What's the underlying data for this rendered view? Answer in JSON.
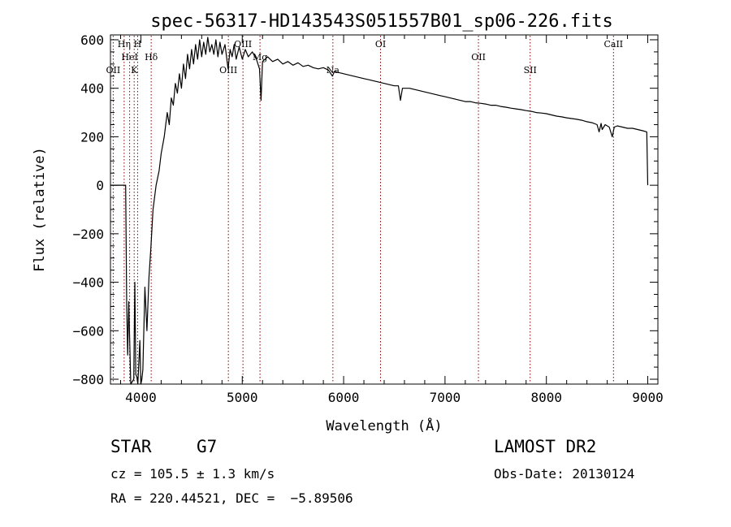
{
  "chart_data": {
    "type": "line",
    "title": "spec-56317-HD143543S051557B01_sp06-226.fits",
    "xlabel": "Wavelength (Å)",
    "ylabel": "Flux (relative)",
    "xlim": [
      3700,
      9100
    ],
    "ylim": [
      -820,
      620
    ],
    "x_ticks": [
      4000,
      5000,
      6000,
      7000,
      8000,
      9000
    ],
    "y_ticks": [
      -800,
      -600,
      -400,
      -200,
      0,
      200,
      400,
      600
    ],
    "x_tick_labels": [
      "4000",
      "5000",
      "6000",
      "7000",
      "8000",
      "9000"
    ],
    "y_tick_labels": [
      "−800",
      "−600",
      "−400",
      "−200",
      "0",
      "200",
      "400",
      "600"
    ],
    "grid": false,
    "series": [
      {
        "color": "#000000",
        "points": [
          [
            3700,
            0
          ],
          [
            3850,
            0
          ],
          [
            3860,
            -500
          ],
          [
            3870,
            -700
          ],
          [
            3880,
            -480
          ],
          [
            3900,
            -820
          ],
          [
            3930,
            -800
          ],
          [
            3940,
            -400
          ],
          [
            3950,
            -780
          ],
          [
            3960,
            -790
          ],
          [
            3970,
            -820
          ],
          [
            3990,
            -640
          ],
          [
            4000,
            -820
          ],
          [
            4010,
            -800
          ],
          [
            4020,
            -760
          ],
          [
            4040,
            -420
          ],
          [
            4060,
            -600
          ],
          [
            4080,
            -380
          ],
          [
            4100,
            -250
          ],
          [
            4120,
            -100
          ],
          [
            4150,
            0
          ],
          [
            4180,
            60
          ],
          [
            4200,
            130
          ],
          [
            4230,
            200
          ],
          [
            4260,
            300
          ],
          [
            4280,
            250
          ],
          [
            4300,
            360
          ],
          [
            4320,
            330
          ],
          [
            4340,
            420
          ],
          [
            4360,
            380
          ],
          [
            4380,
            460
          ],
          [
            4400,
            400
          ],
          [
            4420,
            500
          ],
          [
            4440,
            440
          ],
          [
            4460,
            540
          ],
          [
            4480,
            480
          ],
          [
            4500,
            560
          ],
          [
            4520,
            500
          ],
          [
            4540,
            580
          ],
          [
            4560,
            520
          ],
          [
            4580,
            600
          ],
          [
            4600,
            530
          ],
          [
            4620,
            590
          ],
          [
            4640,
            540
          ],
          [
            4660,
            610
          ],
          [
            4680,
            550
          ],
          [
            4700,
            580
          ],
          [
            4720,
            540
          ],
          [
            4740,
            600
          ],
          [
            4760,
            530
          ],
          [
            4780,
            590
          ],
          [
            4800,
            540
          ],
          [
            4830,
            580
          ],
          [
            4860,
            480
          ],
          [
            4880,
            560
          ],
          [
            4900,
            530
          ],
          [
            4920,
            580
          ],
          [
            4940,
            520
          ],
          [
            4970,
            570
          ],
          [
            5000,
            520
          ],
          [
            5030,
            560
          ],
          [
            5060,
            530
          ],
          [
            5100,
            550
          ],
          [
            5140,
            520
          ],
          [
            5170,
            480
          ],
          [
            5185,
            350
          ],
          [
            5200,
            510
          ],
          [
            5250,
            530
          ],
          [
            5300,
            510
          ],
          [
            5350,
            520
          ],
          [
            5400,
            500
          ],
          [
            5450,
            510
          ],
          [
            5500,
            495
          ],
          [
            5550,
            505
          ],
          [
            5600,
            490
          ],
          [
            5650,
            495
          ],
          [
            5700,
            485
          ],
          [
            5750,
            480
          ],
          [
            5800,
            485
          ],
          [
            5850,
            475
          ],
          [
            5890,
            450
          ],
          [
            5910,
            470
          ],
          [
            5950,
            465
          ],
          [
            6000,
            460
          ],
          [
            6050,
            455
          ],
          [
            6100,
            450
          ],
          [
            6150,
            445
          ],
          [
            6200,
            440
          ],
          [
            6250,
            435
          ],
          [
            6300,
            430
          ],
          [
            6350,
            425
          ],
          [
            6400,
            420
          ],
          [
            6450,
            415
          ],
          [
            6500,
            410
          ],
          [
            6540,
            410
          ],
          [
            6560,
            350
          ],
          [
            6580,
            400
          ],
          [
            6650,
            400
          ],
          [
            6700,
            395
          ],
          [
            6750,
            390
          ],
          [
            6800,
            385
          ],
          [
            6850,
            380
          ],
          [
            6900,
            375
          ],
          [
            6950,
            370
          ],
          [
            7000,
            365
          ],
          [
            7050,
            360
          ],
          [
            7100,
            355
          ],
          [
            7150,
            350
          ],
          [
            7200,
            345
          ],
          [
            7250,
            345
          ],
          [
            7300,
            340
          ],
          [
            7350,
            338
          ],
          [
            7400,
            335
          ],
          [
            7450,
            330
          ],
          [
            7500,
            330
          ],
          [
            7550,
            325
          ],
          [
            7600,
            322
          ],
          [
            7650,
            318
          ],
          [
            7700,
            315
          ],
          [
            7750,
            312
          ],
          [
            7800,
            308
          ],
          [
            7850,
            305
          ],
          [
            7900,
            300
          ],
          [
            7950,
            298
          ],
          [
            8000,
            295
          ],
          [
            8050,
            290
          ],
          [
            8100,
            285
          ],
          [
            8150,
            282
          ],
          [
            8200,
            278
          ],
          [
            8250,
            275
          ],
          [
            8300,
            272
          ],
          [
            8350,
            268
          ],
          [
            8400,
            262
          ],
          [
            8450,
            258
          ],
          [
            8500,
            250
          ],
          [
            8520,
            220
          ],
          [
            8540,
            255
          ],
          [
            8550,
            230
          ],
          [
            8580,
            250
          ],
          [
            8620,
            240
          ],
          [
            8650,
            200
          ],
          [
            8670,
            240
          ],
          [
            8700,
            245
          ],
          [
            8750,
            240
          ],
          [
            8800,
            235
          ],
          [
            8850,
            235
          ],
          [
            8900,
            230
          ],
          [
            8950,
            225
          ],
          [
            8990,
            220
          ],
          [
            9000,
            0
          ]
        ]
      }
    ],
    "line_color": "#8b0000",
    "lines": [
      {
        "label": "OII",
        "x": 3727
      },
      {
        "label": "Hη",
        "x": 3835
      },
      {
        "label": "HeI",
        "x": 3889
      },
      {
        "label": "K",
        "x": 3934
      },
      {
        "label": "H",
        "x": 3968
      },
      {
        "label": "Hδ",
        "x": 4102
      },
      {
        "label": "OIII",
        "x": 4863
      },
      {
        "label": "OIII",
        "x": 5007
      },
      {
        "label": "Mg",
        "x": 5175
      },
      {
        "label": "Na",
        "x": 5894
      },
      {
        "label": "OI",
        "x": 6364
      },
      {
        "label": "OII",
        "x": 7330
      },
      {
        "label": "SII",
        "x": 7840
      },
      {
        "label": "CaII",
        "x": 8662
      }
    ]
  },
  "info": {
    "object_type": "STAR",
    "subclass": "G7",
    "survey": "LAMOST DR2",
    "cz": "cz = 105.5 ± 1.3 km/s",
    "obs_date": "Obs-Date: 20130124",
    "coords": "RA = 220.44521, DEC =  −5.89506"
  }
}
